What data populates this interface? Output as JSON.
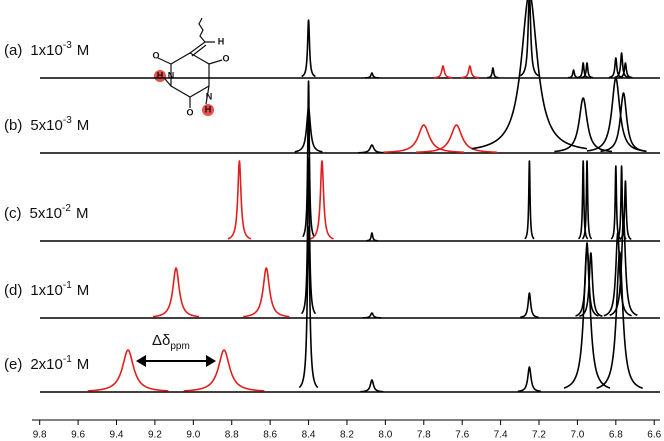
{
  "chart_data": {
    "type": "nmr",
    "xlim": [
      9.84,
      6.57
    ],
    "xticks": [
      9.8,
      9.6,
      9.4,
      9.2,
      {
        "value": 9,
        "label": "9.0"
      },
      8.8,
      8.6,
      8.4,
      8.2,
      {
        "value": 8,
        "label": "8.0"
      },
      7.8,
      7.6,
      7.4,
      7.2,
      {
        "value": 7,
        "label": "7.0"
      },
      6.8,
      6.6
    ],
    "series": [
      {
        "name": "(a)",
        "concentration": "1x10",
        "exponent": "-3",
        "unit": "M",
        "x": [
          8.4,
          8.07,
          7.7,
          7.56,
          7.44,
          7.25,
          7.02,
          6.97,
          6.95,
          6.8,
          6.77,
          6.75
        ],
        "values": [
          58,
          5,
          12,
          12,
          10,
          85,
          8,
          15,
          15,
          20,
          25,
          15
        ],
        "widths": [
          0.006,
          0.006,
          0.008,
          0.008,
          0.005,
          0.008,
          0.005,
          0.005,
          0.005,
          0.006,
          0.006,
          0.006
        ],
        "colors": [
          "#000",
          "#000",
          "#e02020",
          "#e02020",
          "#000",
          "#000",
          "#000",
          "#000",
          "#000",
          "#000",
          "#000",
          "#000"
        ]
      },
      {
        "name": "(b)",
        "concentration": "5x10",
        "exponent": "-3",
        "unit": "M",
        "x": [
          8.4,
          8.07,
          7.8,
          7.63,
          7.25,
          6.97,
          6.8,
          6.76
        ],
        "values": [
          45,
          8,
          28,
          28,
          160,
          55,
          75,
          60
        ],
        "widths": [
          0.012,
          0.012,
          0.035,
          0.035,
          0.05,
          0.025,
          0.025,
          0.02
        ],
        "colors": [
          "#000",
          "#000",
          "#e02020",
          "#e02020",
          "#000",
          "#000",
          "#000",
          "#000"
        ]
      },
      {
        "name": "(c)",
        "concentration": "5x10",
        "exponent": "-2",
        "unit": "M",
        "x": [
          8.76,
          8.4,
          8.33,
          8.07,
          7.25,
          6.97,
          6.95,
          6.8,
          6.77,
          6.75
        ],
        "values": [
          80,
          160,
          80,
          8,
          80,
          80,
          80,
          75,
          75,
          60
        ],
        "widths": [
          0.01,
          0.005,
          0.01,
          0.005,
          0.004,
          0.004,
          0.004,
          0.004,
          0.004,
          0.005
        ],
        "colors": [
          "#e02020",
          "#000",
          "#e02020",
          "#000",
          "#000",
          "#000",
          "#000",
          "#000",
          "#000",
          "#000"
        ]
      },
      {
        "name": "(d)",
        "concentration": "1x10",
        "exponent": "-1",
        "unit": "M",
        "x": [
          9.09,
          8.62,
          8.4,
          8.07,
          7.25,
          6.95,
          6.93,
          6.79,
          6.76
        ],
        "values": [
          50,
          50,
          160,
          5,
          25,
          75,
          65,
          85,
          100
        ],
        "widths": [
          0.02,
          0.02,
          0.006,
          0.008,
          0.008,
          0.01,
          0.01,
          0.012,
          0.012
        ],
        "colors": [
          "#e02020",
          "#e02020",
          "#000",
          "#000",
          "#000",
          "#000",
          "#000",
          "#000",
          "#000"
        ]
      },
      {
        "name": "(e)",
        "concentration": "2x10",
        "exponent": "-1",
        "unit": "M",
        "x": [
          9.34,
          8.84,
          8.4,
          8.07,
          7.25,
          6.95,
          6.78
        ],
        "values": [
          42,
          42,
          165,
          12,
          25,
          145,
          140
        ],
        "widths": [
          0.035,
          0.035,
          0.008,
          0.01,
          0.01,
          0.02,
          0.02
        ],
        "colors": [
          "#e02020",
          "#e02020",
          "#000",
          "#000",
          "#000",
          "#000",
          "#000"
        ]
      }
    ],
    "annotation": {
      "text": "Δδ",
      "subscript": "ppm"
    },
    "molecule": {
      "atoms": [
        "O",
        "O",
        "O",
        "N",
        "N",
        "H",
        "H",
        "H"
      ]
    }
  }
}
